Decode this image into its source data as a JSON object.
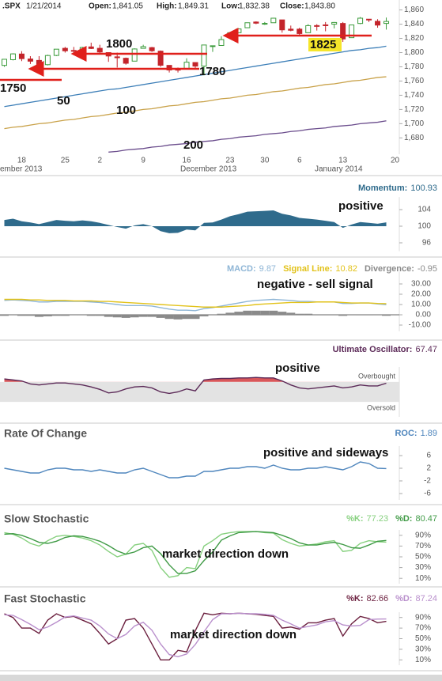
{
  "chart_data": [
    {
      "type": "candlestick",
      "symbol": ".SPX",
      "date": "1/21/2014",
      "stats": [
        {
          "label": "Open:",
          "text": "1,841.05"
        },
        {
          "label": "High:",
          "text": "1,849.31"
        },
        {
          "label": "Low:",
          "text": "1,832.38"
        },
        {
          "label": "Close:",
          "text": "1,843.80"
        }
      ],
      "categories": [
        null,
        null,
        "18",
        null,
        null,
        null,
        null,
        "25",
        null,
        null,
        null,
        "2",
        null,
        null,
        null,
        null,
        "9",
        null,
        null,
        null,
        null,
        "16",
        null,
        null,
        null,
        null,
        "23",
        null,
        null,
        null,
        "30",
        null,
        null,
        null,
        "6",
        null,
        null,
        null,
        null,
        "13",
        null,
        null,
        null,
        null,
        null,
        "20"
      ],
      "month_labels": [
        "ember 2013",
        "December 2013",
        "January 2014"
      ],
      "open": [
        1782,
        1790,
        1798,
        1791,
        1789,
        1783,
        1796,
        1806,
        1803,
        1803,
        1808,
        1806,
        1800,
        1794,
        1792,
        1788,
        1806,
        1807,
        1802,
        1782,
        1777,
        1777,
        1786,
        1781,
        1809,
        1810,
        1822,
        1828,
        1835,
        1843,
        1841,
        1842,
        1846,
        1833,
        1833,
        1828,
        1838,
        1839,
        1840,
        1841,
        1821,
        1841,
        1847,
        1844,
        1841.05,
        null
      ],
      "high": [
        1791,
        1799,
        1802,
        1795,
        1795,
        1797,
        1805,
        1808,
        1808,
        1808,
        1814,
        1811,
        1800,
        1800,
        1793,
        1806,
        1811,
        1808,
        1803,
        1782,
        1779,
        1792,
        1786,
        1811,
        1810,
        1823,
        1829,
        1833,
        1842,
        1844,
        1843,
        1849,
        1846,
        1838,
        1835,
        1840,
        1840,
        1843,
        1843,
        1843,
        1839,
        1850,
        1847,
        1847,
        1849.31,
        null
      ],
      "low": [
        1780,
        1789,
        1788,
        1784,
        1777,
        1782,
        1795,
        1800,
        1800,
        1802,
        1805,
        1798,
        1787,
        1779,
        1783,
        1788,
        1806,
        1801,
        1780,
        1772,
        1772,
        1777,
        1777,
        1768,
        1801,
        1810,
        1822,
        1828,
        1835,
        1840,
        1839,
        1842,
        1828,
        1830,
        1824,
        1828,
        1831,
        1830,
        1834,
        1815,
        1821,
        1840,
        1843,
        1835,
        1832.38,
        null
      ],
      "close": [
        1790.6,
        1798.2,
        1791.5,
        1787.9,
        1781.4,
        1795.9,
        1804.8,
        1802.5,
        1802.8,
        1807.2,
        1805.8,
        1800.9,
        1795.2,
        1792.8,
        1785,
        1805.1,
        1808.4,
        1802.6,
        1782.2,
        1775.5,
        1775.3,
        1786.5,
        1781,
        1810.7,
        1809.6,
        1818.3,
        1828,
        1833.3,
        1842,
        1841.4,
        1841.1,
        1848.4,
        1832,
        1831.4,
        1826.8,
        1837.9,
        1837.5,
        1838.1,
        1842.4,
        1819.2,
        1838.9,
        1848.4,
        1845.9,
        1838.7,
        1843.8,
        null
      ],
      "up_color": "#3b9b3b",
      "down_color": "#c3242b",
      "series": [
        {
          "name": "50",
          "color": "#3d7fb8",
          "values": [
            1724,
            1726,
            1728,
            1730,
            1732,
            1734,
            1736,
            1738,
            1740,
            1742,
            1744,
            1746,
            1748,
            1749,
            1751,
            1753,
            1755,
            1757,
            1759,
            1761,
            1763,
            1765,
            1767,
            1769,
            1771,
            1773,
            1775,
            1777,
            1779,
            1781,
            1783,
            1785,
            1787,
            1789,
            1791,
            1793,
            1795,
            1797,
            1799,
            1801,
            1803,
            1804,
            1806,
            1807,
            1809,
            null
          ]
        },
        {
          "name": "100",
          "color": "#c9a24a",
          "values": [
            1693,
            1695,
            1696,
            1698,
            1700,
            1701,
            1703,
            1705,
            1706,
            1708,
            1710,
            1711,
            1713,
            1715,
            1716,
            1718,
            1720,
            1721,
            1723,
            1725,
            1726,
            1728,
            1730,
            1731,
            1733,
            1735,
            1736,
            1738,
            1740,
            1741,
            1743,
            1745,
            1746,
            1748,
            1750,
            1751,
            1753,
            1755,
            1756,
            1758,
            1760,
            1761,
            1763,
            1765,
            1766,
            null
          ]
        },
        {
          "name": "200",
          "color": "#6a4c8c",
          "values": [
            null,
            null,
            null,
            null,
            null,
            null,
            null,
            null,
            null,
            null,
            null,
            null,
            1660,
            1661,
            1663,
            1664,
            1665,
            1667,
            1668,
            1670,
            1671,
            1672,
            1674,
            1675,
            1676,
            1678,
            1679,
            1681,
            1682,
            1683,
            1685,
            1686,
            1687,
            1689,
            1690,
            1692,
            1693,
            1694,
            1696,
            1697,
            1698,
            1700,
            1701,
            1702,
            1704,
            null
          ]
        }
      ],
      "annotations": [
        "1800",
        "1780",
        "1750",
        "1825"
      ],
      "ylim": [
        1657,
        1874
      ],
      "yticks": [
        {
          "value": 1680,
          "label": "1,680"
        },
        {
          "value": 1700,
          "label": "1,700"
        },
        {
          "value": 1720,
          "label": "1,720"
        },
        {
          "value": 1740,
          "label": "1,740"
        },
        {
          "value": 1760,
          "label": "1,760"
        },
        {
          "value": 1780,
          "label": "1,780"
        },
        {
          "value": 1800,
          "label": "1,800"
        },
        {
          "value": 1820,
          "label": "1,820"
        },
        {
          "value": 1840,
          "label": "1,840"
        },
        {
          "value": 1860,
          "label": "1,860"
        }
      ]
    },
    {
      "type": "area",
      "name": "Momentum:",
      "color": "#2f6b8c",
      "baseline": 100,
      "annotation": "positive",
      "values": [
        101.5,
        101.8,
        101.2,
        100.9,
        100.5,
        101,
        101.5,
        101.3,
        101.2,
        101.4,
        101.2,
        100.8,
        100.3,
        99.8,
        99.4,
        100.2,
        100.5,
        100,
        98.8,
        98.3,
        98.4,
        99.2,
        99,
        100.8,
        100.9,
        101.6,
        102.4,
        102.9,
        103.5,
        103.6,
        103.7,
        103.8,
        103,
        102.6,
        102,
        101.8,
        101.6,
        101.3,
        101,
        99.6,
        100.4,
        101,
        100.8,
        100.6,
        100.93,
        null
      ],
      "ylim": [
        94,
        107
      ],
      "yticks": [
        96,
        100,
        104
      ]
    },
    {
      "type": "line",
      "annotation": "negative - sell signal",
      "series": [
        {
          "name": "MACD:",
          "color": "#8fb6d6",
          "values": [
            14,
            14.5,
            14,
            13.5,
            12.5,
            12.5,
            13,
            13,
            13,
            13,
            12.5,
            12,
            11,
            10,
            9,
            9,
            9,
            8.5,
            7,
            5.5,
            4.5,
            4.5,
            4,
            6,
            7,
            8.5,
            10,
            11.5,
            13,
            14,
            14.5,
            15,
            14.5,
            14,
            13,
            13,
            12.5,
            12.5,
            12.5,
            11,
            11,
            11.5,
            11.5,
            10.5,
            9.87,
            null
          ]
        },
        {
          "name": "Signal Line:",
          "color": "#e2c21a",
          "values": [
            15,
            15,
            15,
            14.5,
            14.5,
            14,
            14,
            14,
            13.5,
            13.5,
            13.5,
            13,
            13,
            12.5,
            12,
            11.5,
            11,
            10.5,
            10,
            9.5,
            9,
            8.5,
            8,
            7.5,
            7.5,
            7.5,
            8,
            8.5,
            9,
            10,
            10.5,
            11,
            11.5,
            12,
            12,
            12,
            12.5,
            12.5,
            12.5,
            12,
            11.5,
            11.5,
            11.5,
            11,
            10.82,
            null
          ]
        },
        {
          "name": "Divergence:",
          "color": "#8a8a8a",
          "mark": "bar",
          "values": [
            -1,
            -0.5,
            -1,
            -1,
            -2,
            -1.5,
            -1,
            -1,
            -0.5,
            -0.5,
            -1,
            -1,
            -2,
            -2.5,
            -3,
            -2.5,
            -2,
            -2,
            -3,
            -4,
            -4.5,
            -4,
            -4,
            -1.5,
            -0.5,
            1,
            2,
            3,
            4,
            4,
            4,
            4,
            3,
            2,
            1,
            1,
            0,
            0,
            0,
            -1,
            -0.5,
            0,
            0,
            -0.5,
            -0.95,
            null
          ]
        }
      ],
      "ylim": [
        -16,
        42
      ],
      "yticks": [
        {
          "value": -10,
          "label": "-10.00"
        },
        {
          "value": 0,
          "label": "0.00"
        },
        {
          "value": 10,
          "label": "10.00"
        },
        {
          "value": 20,
          "label": "20.00"
        },
        {
          "value": 30,
          "label": "30.00"
        }
      ]
    },
    {
      "type": "line",
      "annotation": "positive",
      "band": {
        "lower": 30,
        "upper": 70,
        "upper_label": "Overbought",
        "lower_label": "Oversold",
        "color": "#e3e3e3",
        "fill_above": "#d9575a"
      },
      "series": [
        {
          "name": "Ultimate Oscillator:",
          "color": "#5c2a58",
          "values": [
            76,
            74,
            72,
            66,
            64,
            66,
            68,
            68,
            66,
            64,
            60,
            55,
            48,
            50,
            56,
            60,
            61,
            58,
            50,
            47,
            50,
            56,
            52,
            74,
            76,
            77,
            77,
            78,
            78,
            79,
            78,
            78,
            72,
            64,
            58,
            56,
            58,
            60,
            62,
            58,
            60,
            64,
            62,
            62,
            67.47,
            null
          ]
        }
      ],
      "ylim": [
        0,
        100
      ],
      "yticks": []
    },
    {
      "type": "line",
      "title": "Rate Of Change",
      "annotation": "positive and sideways",
      "series": [
        {
          "name": "ROC:",
          "color": "#4f86bd",
          "values": [
            2,
            1.5,
            1,
            0.5,
            0.5,
            1.5,
            2,
            2,
            1.5,
            1.5,
            1,
            1.5,
            1,
            0.5,
            0.5,
            1.5,
            2,
            1,
            0,
            -1,
            -1,
            -0.5,
            -0.5,
            1,
            1,
            1.5,
            2,
            2,
            2.5,
            2.5,
            2,
            3,
            2,
            1.5,
            1.5,
            2,
            2,
            2.5,
            2,
            1.5,
            2.5,
            4,
            3.5,
            2,
            1.89,
            null
          ]
        }
      ],
      "ylim": [
        -8,
        9
      ],
      "yticks": [
        -6,
        -2,
        2,
        6
      ]
    },
    {
      "type": "line",
      "title": "Slow Stochastic",
      "annotation": "market direction down",
      "series": [
        {
          "name": "%K:",
          "color": "#86d07e",
          "values": [
            95,
            92,
            85,
            75,
            70,
            80,
            88,
            90,
            88,
            85,
            80,
            72,
            60,
            50,
            55,
            72,
            75,
            62,
            30,
            12,
            15,
            30,
            28,
            70,
            80,
            92,
            95,
            97,
            97,
            97,
            95,
            94,
            82,
            75,
            70,
            72,
            74,
            78,
            80,
            60,
            62,
            75,
            80,
            78,
            77.23,
            null
          ]
        },
        {
          "name": "%D:",
          "color": "#3f9a45",
          "values": [
            92,
            93,
            90,
            84,
            77,
            75,
            79,
            86,
            89,
            88,
            84,
            79,
            71,
            61,
            55,
            59,
            67,
            70,
            56,
            35,
            19,
            19,
            24,
            43,
            59,
            81,
            89,
            95,
            96,
            97,
            96,
            95,
            90,
            84,
            76,
            72,
            72,
            75,
            77,
            73,
            67,
            66,
            72,
            79,
            80.47,
            null
          ]
        }
      ],
      "ylim": [
        0,
        100
      ],
      "yticks": [
        {
          "value": 10,
          "label": "10%"
        },
        {
          "value": 30,
          "label": "30%"
        },
        {
          "value": 50,
          "label": "50%"
        },
        {
          "value": 70,
          "label": "70%"
        },
        {
          "value": 90,
          "label": "90%"
        }
      ]
    },
    {
      "type": "line",
      "title": "Fast Stochastic",
      "annotation": "market direction down",
      "series": [
        {
          "name": "%K:",
          "color": "#6b1f3e",
          "values": [
            97,
            90,
            70,
            70,
            60,
            85,
            97,
            90,
            92,
            85,
            78,
            60,
            40,
            50,
            85,
            88,
            70,
            40,
            10,
            10,
            28,
            25,
            65,
            98,
            95,
            98,
            97,
            98,
            97,
            96,
            94,
            92,
            70,
            72,
            68,
            80,
            80,
            85,
            88,
            55,
            78,
            92,
            88,
            80,
            82.66,
            null
          ]
        },
        {
          "name": "%D:",
          "color": "#b98fcc",
          "values": [
            95,
            94,
            86,
            77,
            67,
            72,
            81,
            91,
            93,
            89,
            85,
            74,
            59,
            50,
            58,
            74,
            81,
            66,
            40,
            20,
            16,
            21,
            39,
            63,
            86,
            97,
            97,
            98,
            97,
            97,
            96,
            94,
            85,
            78,
            70,
            73,
            76,
            82,
            84,
            76,
            74,
            75,
            86,
            87,
            87.24,
            null
          ]
        }
      ],
      "ylim": [
        0,
        100
      ],
      "yticks": [
        {
          "value": 10,
          "label": "10%"
        },
        {
          "value": 30,
          "label": "30%"
        },
        {
          "value": 50,
          "label": "50%"
        },
        {
          "value": 70,
          "label": "70%"
        },
        {
          "value": 90,
          "label": "90%"
        }
      ]
    }
  ]
}
